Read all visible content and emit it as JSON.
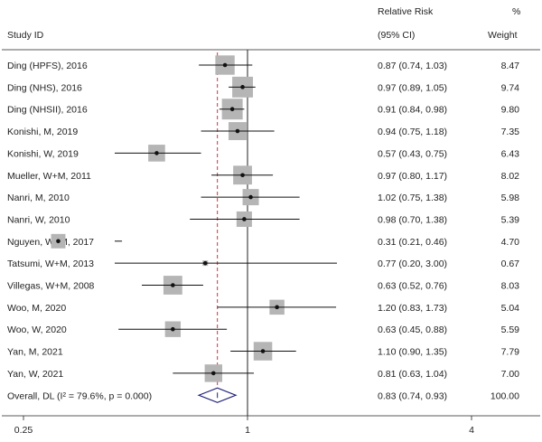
{
  "chart_data": {
    "type": "forest",
    "headers": {
      "study_id": "Study ID",
      "rr_line1": "Relative Risk",
      "rr_line2": "(95% CI)",
      "weight_line1": "%",
      "weight_line2": "Weight"
    },
    "xaxis": {
      "scale": "log",
      "ticks": [
        0.25,
        1,
        4
      ],
      "tick_labels": [
        "0.25",
        "1",
        "4"
      ]
    },
    "null_line": 1,
    "pooled_line": 0.83,
    "studies": [
      {
        "label": "Ding (HPFS), 2016",
        "rr": 0.87,
        "lo": 0.74,
        "hi": 1.03,
        "ci_text": "0.87 (0.74, 1.03)",
        "weight": 8.47,
        "weight_text": "8.47"
      },
      {
        "label": "Ding (NHS), 2016",
        "rr": 0.97,
        "lo": 0.89,
        "hi": 1.05,
        "ci_text": "0.97 (0.89, 1.05)",
        "weight": 9.74,
        "weight_text": "9.74"
      },
      {
        "label": "Ding (NHSII), 2016",
        "rr": 0.91,
        "lo": 0.84,
        "hi": 0.98,
        "ci_text": "0.91 (0.84, 0.98)",
        "weight": 9.8,
        "weight_text": "9.80"
      },
      {
        "label": "Konishi, M, 2019",
        "rr": 0.94,
        "lo": 0.75,
        "hi": 1.18,
        "ci_text": "0.94 (0.75, 1.18)",
        "weight": 7.35,
        "weight_text": "7.35"
      },
      {
        "label": "Konishi, W, 2019",
        "rr": 0.57,
        "lo": 0.43,
        "hi": 0.75,
        "ci_text": "0.57 (0.43, 0.75)",
        "weight": 6.43,
        "weight_text": "6.43"
      },
      {
        "label": "Mueller, W+M, 2011",
        "rr": 0.97,
        "lo": 0.8,
        "hi": 1.17,
        "ci_text": "0.97 (0.80, 1.17)",
        "weight": 8.02,
        "weight_text": "8.02"
      },
      {
        "label": "Nanri, M, 2010",
        "rr": 1.02,
        "lo": 0.75,
        "hi": 1.38,
        "ci_text": "1.02 (0.75, 1.38)",
        "weight": 5.98,
        "weight_text": "5.98"
      },
      {
        "label": "Nanri, W, 2010",
        "rr": 0.98,
        "lo": 0.7,
        "hi": 1.38,
        "ci_text": "0.98 (0.70, 1.38)",
        "weight": 5.39,
        "weight_text": "5.39"
      },
      {
        "label": "Nguyen, W+M, 2017",
        "rr": 0.31,
        "lo": 0.21,
        "hi": 0.46,
        "ci_text": "0.31 (0.21, 0.46)",
        "weight": 4.7,
        "weight_text": "4.70"
      },
      {
        "label": "Tatsumi, W+M, 2013",
        "rr": 0.77,
        "lo": 0.2,
        "hi": 3.0,
        "ci_text": "0.77 (0.20, 3.00)",
        "weight": 0.67,
        "weight_text": "0.67"
      },
      {
        "label": "Villegas, W+M, 2008",
        "rr": 0.63,
        "lo": 0.52,
        "hi": 0.76,
        "ci_text": "0.63 (0.52, 0.76)",
        "weight": 8.03,
        "weight_text": "8.03"
      },
      {
        "label": "Woo, M, 2020",
        "rr": 1.2,
        "lo": 0.83,
        "hi": 1.73,
        "ci_text": "1.20 (0.83, 1.73)",
        "weight": 5.04,
        "weight_text": "5.04"
      },
      {
        "label": "Woo, W, 2020",
        "rr": 0.63,
        "lo": 0.45,
        "hi": 0.88,
        "ci_text": "0.63 (0.45, 0.88)",
        "weight": 5.59,
        "weight_text": "5.59"
      },
      {
        "label": "Yan, M, 2021",
        "rr": 1.1,
        "lo": 0.9,
        "hi": 1.35,
        "ci_text": "1.10 (0.90, 1.35)",
        "weight": 7.79,
        "weight_text": "7.79"
      },
      {
        "label": "Yan, W, 2021",
        "rr": 0.81,
        "lo": 0.63,
        "hi": 1.04,
        "ci_text": "0.81 (0.63, 1.04)",
        "weight": 7.0,
        "weight_text": "7.00"
      }
    ],
    "overall": {
      "label": "Overall, DL (I² = 79.6%, p = 0.000)",
      "rr": 0.83,
      "lo": 0.74,
      "hi": 0.93,
      "ci_text": "0.83 (0.74, 0.93)",
      "weight_text": "100.00"
    },
    "colors": {
      "box": "#b5b5b5",
      "point": "#111111",
      "ci_line": "#111111",
      "null_line": "#222222",
      "pooled_line": "#cc3344",
      "diamond": "#1f1f7a"
    }
  }
}
